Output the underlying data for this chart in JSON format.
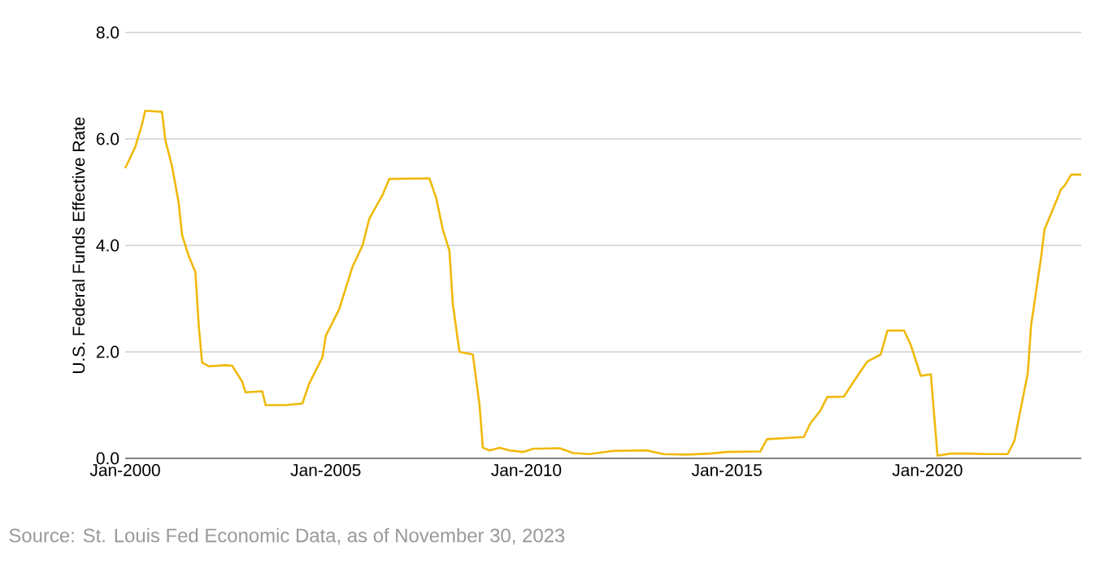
{
  "chart_data": {
    "type": "line",
    "ylabel": "U.S. Federal Funds Effective Rate",
    "annotations": [
      "Source: St. Louis Fed Economic Data, as of November 30, 2023"
    ],
    "color": "#f0b90b",
    "grid": "y",
    "xlim": [
      "2000-01",
      "2023-11"
    ],
    "xticks": [
      {
        "value": "2000-01",
        "label": "Jan-2000"
      },
      {
        "value": "2005-01",
        "label": "Jan-2005"
      },
      {
        "value": "2010-01",
        "label": "Jan-2010"
      },
      {
        "value": "2015-01",
        "label": "Jan-2015"
      },
      {
        "value": "2020-01",
        "label": "Jan-2020"
      }
    ],
    "ylim": [
      0,
      8
    ],
    "yticks": [
      {
        "value": 0,
        "label": "0.0"
      },
      {
        "value": 2,
        "label": "2.0"
      },
      {
        "value": 4,
        "label": "4.0"
      },
      {
        "value": 6,
        "label": "6.0"
      },
      {
        "value": 8,
        "label": "8.0"
      }
    ],
    "x": [
      "2000-01",
      "2000-04",
      "2000-06",
      "2000-07",
      "2000-12",
      "2001-01",
      "2001-03",
      "2001-05",
      "2001-06",
      "2001-08",
      "2001-10",
      "2001-11",
      "2001-12",
      "2002-02",
      "2002-07",
      "2002-09",
      "2002-12",
      "2003-01",
      "2003-06",
      "2003-07",
      "2004-01",
      "2004-06",
      "2004-08",
      "2004-12",
      "2005-01",
      "2005-05",
      "2005-07",
      "2005-09",
      "2005-12",
      "2006-02",
      "2006-06",
      "2006-08",
      "2007-08",
      "2007-10",
      "2007-12",
      "2008-02",
      "2008-03",
      "2008-05",
      "2008-09",
      "2008-11",
      "2008-12",
      "2009-02",
      "2009-05",
      "2009-08",
      "2009-12",
      "2010-03",
      "2010-11",
      "2011-03",
      "2011-08",
      "2012-03",
      "2013-01",
      "2013-06",
      "2014-01",
      "2014-08",
      "2015-01",
      "2015-11",
      "2016-01",
      "2016-12",
      "2017-02",
      "2017-05",
      "2017-07",
      "2017-12",
      "2018-03",
      "2018-07",
      "2018-11",
      "2019-01",
      "2019-06",
      "2019-08",
      "2019-11",
      "2020-02",
      "2020-04",
      "2020-08",
      "2021-01",
      "2021-07",
      "2022-01",
      "2022-03",
      "2022-07",
      "2022-08",
      "2022-11",
      "2022-12",
      "2023-02",
      "2023-05",
      "2023-06",
      "2023-08",
      "2023-11"
    ],
    "values": [
      5.45,
      5.85,
      6.27,
      6.53,
      6.51,
      5.98,
      5.49,
      4.8,
      4.2,
      3.8,
      3.5,
      2.5,
      1.8,
      1.73,
      1.75,
      1.74,
      1.44,
      1.24,
      1.26,
      1.0,
      1.0,
      1.03,
      1.4,
      1.9,
      2.3,
      2.8,
      3.2,
      3.6,
      4.0,
      4.5,
      4.95,
      5.25,
      5.26,
      4.9,
      4.3,
      3.9,
      2.9,
      2.0,
      1.95,
      1.0,
      0.2,
      0.15,
      0.2,
      0.15,
      0.12,
      0.18,
      0.19,
      0.1,
      0.08,
      0.14,
      0.15,
      0.08,
      0.07,
      0.09,
      0.12,
      0.13,
      0.36,
      0.4,
      0.66,
      0.9,
      1.15,
      1.16,
      1.45,
      1.82,
      1.95,
      2.4,
      2.4,
      2.13,
      1.55,
      1.58,
      0.05,
      0.09,
      0.09,
      0.08,
      0.08,
      0.33,
      1.6,
      2.5,
      3.78,
      4.3,
      4.6,
      5.06,
      5.12,
      5.33,
      5.33
    ]
  }
}
